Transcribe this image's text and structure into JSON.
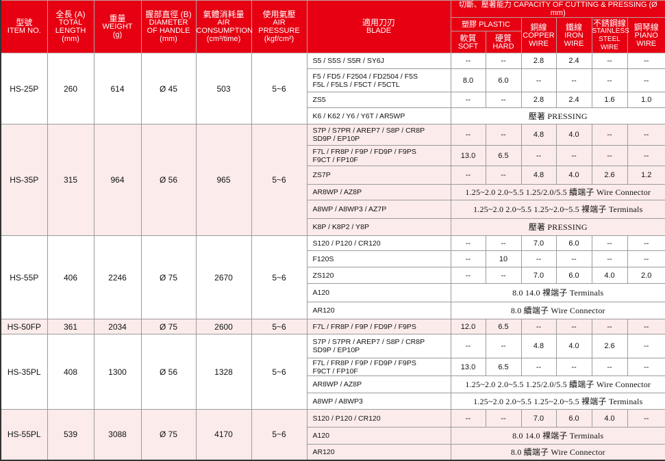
{
  "colors": {
    "header_bg": "#e60012",
    "alt_row_bg": "#fbeceb"
  },
  "header": {
    "item": {
      "zh": "型號",
      "en": "ITEM NO."
    },
    "length": {
      "zh": "全長 (A)",
      "en1": "TOTAL",
      "en2": "LENGTH",
      "unit": "(mm)"
    },
    "weight": {
      "zh": "重量",
      "en": "WEIGHT",
      "unit": "(g)"
    },
    "diameter": {
      "zh": "握部直徑 (B)",
      "en1": "DIAMETER",
      "en2": "OF HANDLE",
      "unit": "(mm)"
    },
    "air_consumption": {
      "zh": "氣體消耗量",
      "en1": "AIR",
      "en2": "CONSUMPTION",
      "unit": "(cm³/time)"
    },
    "air_pressure": {
      "zh": "使用氣壓",
      "en1": "AIR",
      "en2": "PRESSURE",
      "unit": "(kgf/cm²)"
    },
    "blade": {
      "zh": "適用刀刃",
      "en": "BLADE"
    },
    "capacity": "切斷、壓著能力 CAPACITY OF CUTTING & PRESSING (Ø mm)",
    "plastic": "塑膠 PLASTIC",
    "soft": {
      "zh": "軟質",
      "en": "SOFT"
    },
    "hard": {
      "zh": "硬質",
      "en": "HARD"
    },
    "copper": {
      "zh": "銅線",
      "en1": "COPPER",
      "en2": "WIRE"
    },
    "iron": {
      "zh": "鐵線",
      "en1": "IRON",
      "en2": "WIRE"
    },
    "stainless": {
      "zh": "不銹鋼線",
      "en1": "STAINLESS",
      "en2": "STEEL WIRE"
    },
    "piano": {
      "zh": "鋼琴線",
      "en1": "PIANO",
      "en2": "WIRE"
    }
  },
  "groups": [
    {
      "item": "HS-25P",
      "length": "260",
      "weight": "614",
      "diameter": "Ø 45",
      "air": "503",
      "pressure": "5~6",
      "rows": [
        {
          "blade": [
            "S5 / S5S / S5R / SY6J"
          ],
          "values": [
            "--",
            "--",
            "2.8",
            "2.4",
            "--",
            "--"
          ]
        },
        {
          "blade": [
            "F5 / FD5 / F2504 / FD2504 / F5S",
            "F5L / F5LS / F5CT / F5CTL"
          ],
          "values": [
            "8.0",
            "6.0",
            "--",
            "--",
            "--",
            "--"
          ]
        },
        {
          "blade": [
            "ZS5"
          ],
          "values": [
            "--",
            "--",
            "2.8",
            "2.4",
            "1.6",
            "1.0"
          ]
        },
        {
          "blade": [
            "K6 / K62 / Y6 / Y6T / AR5WP"
          ],
          "span": "壓著 PRESSING"
        }
      ]
    },
    {
      "item": "HS-35P",
      "length": "315",
      "weight": "964",
      "diameter": "Ø 56",
      "air": "965",
      "pressure": "5~6",
      "rows": [
        {
          "blade": [
            "S7P / S7PR / AREP7 / S8P / CR8P",
            "SD9P / EP10P"
          ],
          "values": [
            "--",
            "--",
            "4.8",
            "4.0",
            "--",
            "--"
          ]
        },
        {
          "blade": [
            "F7L / FR8P / F9P / FD9P / F9PS",
            "F9CT / FP10F"
          ],
          "values": [
            "13.0",
            "6.5",
            "--",
            "--",
            "--",
            "--"
          ]
        },
        {
          "blade": [
            "ZS7P"
          ],
          "values": [
            "--",
            "--",
            "4.8",
            "4.0",
            "2.6",
            "1.2"
          ]
        },
        {
          "blade": [
            "AR8WP / AZ8P"
          ],
          "span": "1.25~2.0  2.0~5.5  1.25/2.0/5.5 續端子 Wire Connector"
        },
        {
          "blade": [
            "A8WP / A8WP3 / AZ7P"
          ],
          "span": "1.25~2.0  2.0~5.5  1.25~2.0~5.5 裸端子 Terminals"
        },
        {
          "blade": [
            "K8P / K8P2 / Y8P"
          ],
          "span": "壓著 PRESSING"
        }
      ]
    },
    {
      "item": "HS-55P",
      "length": "406",
      "weight": "2246",
      "diameter": "Ø 75",
      "air": "2670",
      "pressure": "5~6",
      "rows": [
        {
          "blade": [
            "S120 / P120 / CR120"
          ],
          "values": [
            "--",
            "--",
            "7.0",
            "6.0",
            "--",
            "--"
          ]
        },
        {
          "blade": [
            "F120S"
          ],
          "values": [
            "--",
            "10",
            "--",
            "--",
            "--",
            "--"
          ]
        },
        {
          "blade": [
            "ZS120"
          ],
          "values": [
            "--",
            "--",
            "7.0",
            "6.0",
            "4.0",
            "2.0"
          ]
        },
        {
          "blade": [
            "A120"
          ],
          "span": "8.0  14.0 裸端子 Terminals"
        },
        {
          "blade": [
            "AR120"
          ],
          "span": "8.0 續端子 Wire Connector"
        }
      ]
    },
    {
      "item": "HS-50FP",
      "length": "361",
      "weight": "2034",
      "diameter": "Ø 75",
      "air": "2600",
      "pressure": "5~6",
      "rows": [
        {
          "blade": [
            "F7L / FR8P / F9P / FD9P / F9PS"
          ],
          "values": [
            "12.0",
            "6.5",
            "--",
            "--",
            "--",
            "--"
          ]
        }
      ]
    },
    {
      "item": "HS-35PL",
      "length": "408",
      "weight": "1300",
      "diameter": "Ø 56",
      "air": "1328",
      "pressure": "5~6",
      "rows": [
        {
          "blade": [
            "S7P / S7PR / AREP7 / S8P / CR8P",
            "SD9P / EP10P"
          ],
          "values": [
            "--",
            "--",
            "4.8",
            "4.0",
            "2.6",
            "--"
          ]
        },
        {
          "blade": [
            "F7L / FR8P / F9P / FD9P / F9PS",
            "F9CT / FP10F"
          ],
          "values": [
            "13.0",
            "6.5",
            "--",
            "--",
            "--",
            "--"
          ]
        },
        {
          "blade": [
            "AR8WP / AZ8P"
          ],
          "span": "1.25~2.0  2.0~5.5  1.25/2.0/5.5 續端子 Wire Connector"
        },
        {
          "blade": [
            "A8WP / A8WP3"
          ],
          "span": "1.25~2.0  2.0~5.5  1.25~2.0~5.5 裸端子 Terminals"
        }
      ]
    },
    {
      "item": "HS-55PL",
      "length": "539",
      "weight": "3088",
      "diameter": "Ø 75",
      "air": "4170",
      "pressure": "5~6",
      "rows": [
        {
          "blade": [
            "S120 / P120  / CR120"
          ],
          "values": [
            "--",
            "--",
            "7.0",
            "6.0",
            "4.0",
            "--"
          ]
        },
        {
          "blade": [
            "A120"
          ],
          "span": "8.0  14.0 裸端子 Terminals"
        },
        {
          "blade": [
            "AR120"
          ],
          "span": "8.0 續端子 Wire Connector"
        }
      ]
    }
  ]
}
